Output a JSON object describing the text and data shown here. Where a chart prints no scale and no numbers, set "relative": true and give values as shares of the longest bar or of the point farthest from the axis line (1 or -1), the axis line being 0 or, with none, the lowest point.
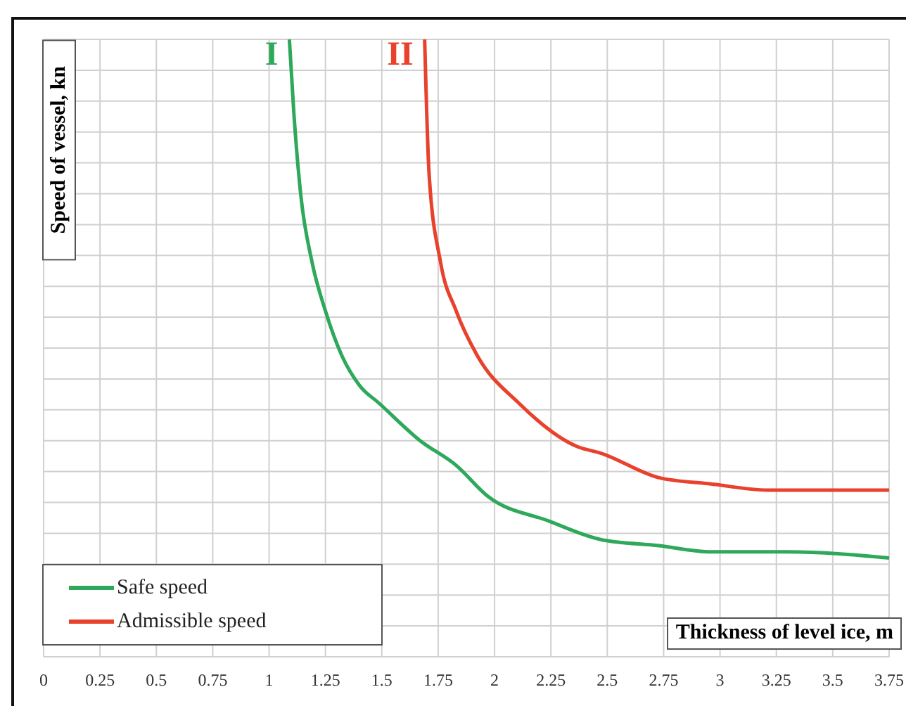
{
  "chart_data": {
    "type": "line",
    "relative": true,
    "xlabel": "Thickness of level ice, m",
    "ylabel": "Speed of vessel, kn",
    "xlim": [
      0,
      3.75
    ],
    "xticks": [
      0,
      0.25,
      0.5,
      0.75,
      1,
      1.25,
      1.5,
      1.75,
      2,
      2.25,
      2.5,
      2.75,
      3,
      3.25,
      3.5,
      3.75
    ],
    "grid": true,
    "legend": "bottom left",
    "marker": "none",
    "line_style": "solid",
    "annotations": [
      "I",
      "II"
    ],
    "series": [
      {
        "name": "Safe speed",
        "color": "#2ea85a",
        "x": [
          1.09,
          1.11,
          1.14,
          1.19,
          1.25,
          1.32,
          1.4,
          1.49,
          1.67,
          1.83,
          1.97,
          2.24,
          2.47,
          2.73,
          2.96,
          3.3,
          3.75
        ],
        "values": [
          1,
          0.88,
          0.75,
          0.64,
          0.56,
          0.49,
          0.44,
          0.41,
          0.35,
          0.31,
          0.26,
          0.22,
          0.19,
          0.18,
          0.17,
          0.17,
          0.16
        ]
      },
      {
        "name": "Admissible speed",
        "color": "#e8412c",
        "x": [
          1.69,
          1.71,
          1.76,
          1.83,
          1.92,
          2.11,
          2.37,
          2.47,
          2.73,
          2.96,
          3.21,
          3.75
        ],
        "values": [
          1,
          0.78,
          0.64,
          0.56,
          0.49,
          0.41,
          0.34,
          0.33,
          0.29,
          0.28,
          0.27,
          0.27
        ]
      }
    ]
  }
}
